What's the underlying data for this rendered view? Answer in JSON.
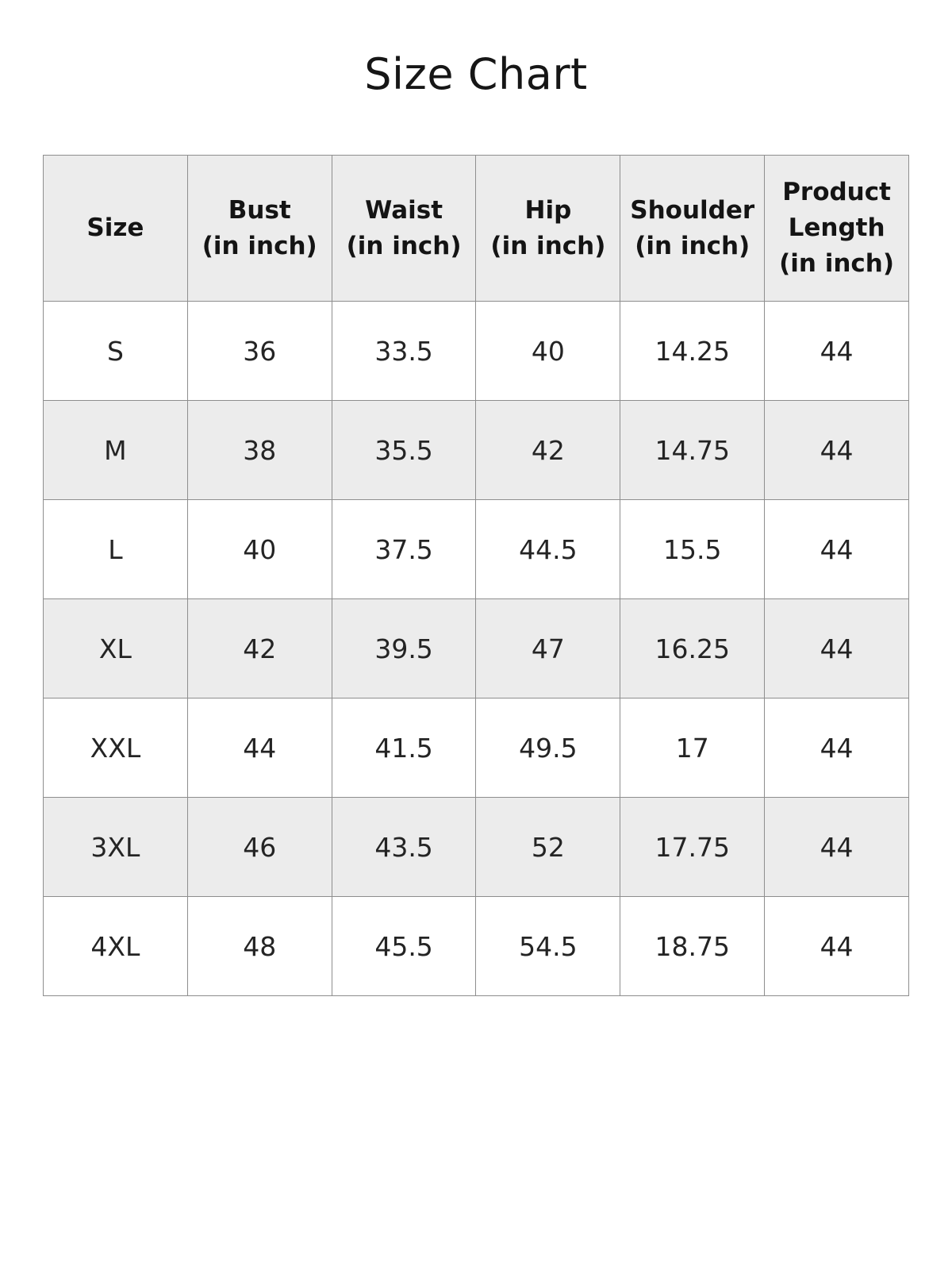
{
  "title": "Size Chart",
  "table": {
    "headers": [
      {
        "label": "Size"
      },
      {
        "label": "Bust\n(in inch)"
      },
      {
        "label": "Waist\n(in inch)"
      },
      {
        "label": "Hip\n(in inch)"
      },
      {
        "label": "Shoulder\n(in inch)"
      },
      {
        "label": "Product\nLength\n(in inch)"
      }
    ],
    "rows": [
      {
        "size": "S",
        "bust": "36",
        "waist": "33.5",
        "hip": "40",
        "shoulder": "14.25",
        "product_length": "44"
      },
      {
        "size": "M",
        "bust": "38",
        "waist": "35.5",
        "hip": "42",
        "shoulder": "14.75",
        "product_length": "44"
      },
      {
        "size": "L",
        "bust": "40",
        "waist": "37.5",
        "hip": "44.5",
        "shoulder": "15.5",
        "product_length": "44"
      },
      {
        "size": "XL",
        "bust": "42",
        "waist": "39.5",
        "hip": "47",
        "shoulder": "16.25",
        "product_length": "44"
      },
      {
        "size": "XXL",
        "bust": "44",
        "waist": "41.5",
        "hip": "49.5",
        "shoulder": "17",
        "product_length": "44"
      },
      {
        "size": "3XL",
        "bust": "46",
        "waist": "43.5",
        "hip": "52",
        "shoulder": "17.75",
        "product_length": "44"
      },
      {
        "size": "4XL",
        "bust": "48",
        "waist": "45.5",
        "hip": "54.5",
        "shoulder": "18.75",
        "product_length": "44"
      }
    ]
  },
  "colors": {
    "header_bg": "#ececec",
    "row_alt_bg": "#ececec",
    "row_bg": "#ffffff",
    "border_color": "#8e8e8e",
    "text_color": "#1d1d1d",
    "page_bg": "#ffffff"
  }
}
